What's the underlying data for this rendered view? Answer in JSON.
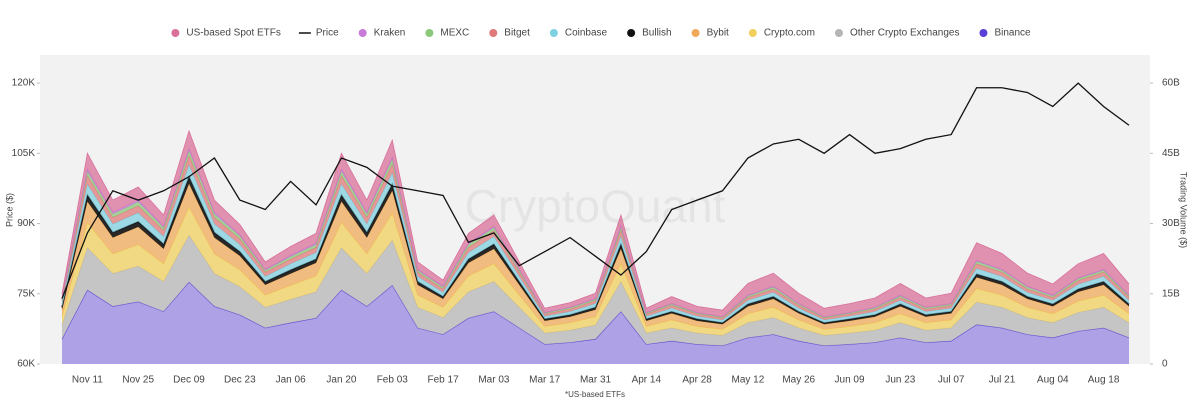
{
  "chart_data": {
    "type": "area",
    "y_label": "Price ($)",
    "y2_label": "Trading Volume ($)",
    "note": "*US-based ETFs",
    "watermark": "CryptoQuant",
    "categories": [
      null,
      "Nov 11",
      null,
      "Nov 25",
      null,
      "Dec 09",
      null,
      "Dec 23",
      null,
      "Jan 06",
      null,
      "Jan 20",
      null,
      "Feb 03",
      null,
      "Feb 17",
      null,
      "Mar 03",
      null,
      "Mar 17",
      null,
      "Mar 31",
      null,
      "Apr 14",
      null,
      "Apr 28",
      null,
      "May 12",
      null,
      "May 26",
      null,
      "Jun 09",
      null,
      "Jun 23",
      null,
      "Jul 07",
      null,
      "Jul 21",
      null,
      "Aug 04",
      null,
      "Aug 18",
      null
    ],
    "ylim": [
      60000,
      126000
    ],
    "yticks": [
      {
        "value": 60000,
        "label": "60K"
      },
      {
        "value": 75000,
        "label": "75K"
      },
      {
        "value": 90000,
        "label": "90K"
      },
      {
        "value": 105000,
        "label": "105K"
      },
      {
        "value": 120000,
        "label": "120K"
      }
    ],
    "y2lim": [
      0,
      66
    ],
    "y2ticks": [
      {
        "value": 0,
        "label": "0"
      },
      {
        "value": 15,
        "label": "15B"
      },
      {
        "value": 30,
        "label": "30B"
      },
      {
        "value": 45,
        "label": "45B"
      },
      {
        "value": 60,
        "label": "60B"
      }
    ],
    "grid": false,
    "series": [
      {
        "name": "US-based Spot ETFs",
        "color": "#d9709a",
        "axis": "y2",
        "values": [
          1,
          3.4,
          2.6,
          2.8,
          2.4,
          3.8,
          2.6,
          2.2,
          1.6,
          1.9,
          2.1,
          3.4,
          2.6,
          3.6,
          1.6,
          1.3,
          2.1,
          2.4,
          1.6,
          0.9,
          1,
          1.1,
          2.4,
          0.9,
          1.5,
          1.3,
          1.4,
          2.5,
          2.8,
          2.2,
          1.8,
          1.9,
          2,
          2.5,
          2,
          2.2,
          3.8,
          3.4,
          2.8,
          2.4,
          3,
          3.4,
          2.4
        ]
      },
      {
        "name": "Price",
        "color": "#111111",
        "type": "line",
        "values": [
          74000,
          88000,
          97000,
          95000,
          97000,
          100000,
          104000,
          95000,
          93000,
          99000,
          94000,
          104000,
          102000,
          98000,
          97000,
          96000,
          86000,
          88000,
          81000,
          84000,
          87000,
          83000,
          79000,
          84000,
          93000,
          95000,
          97000,
          104000,
          107000,
          108000,
          105000,
          109000,
          105000,
          106000,
          108000,
          109000,
          119000,
          119000,
          118000,
          115000,
          120000,
          115000,
          111000
        ]
      },
      {
        "name": "Kraken",
        "color": "#c77ad8",
        "axis": "y2",
        "values": [
          0.2,
          0.5,
          0.4,
          0.4,
          0.3,
          0.5,
          0.4,
          0.3,
          0.2,
          0.3,
          0.3,
          0.5,
          0.4,
          0.5,
          0.2,
          0.2,
          0.3,
          0.3,
          0.2,
          0.1,
          0.1,
          0.2,
          0.3,
          0.1,
          0.1,
          0.1,
          0.1,
          0.2,
          0.2,
          0.1,
          0.1,
          0.1,
          0.1,
          0.2,
          0.1,
          0.1,
          0.2,
          0.2,
          0.2,
          0.2,
          0.2,
          0.2,
          0.2
        ]
      },
      {
        "name": "MEXC",
        "color": "#8cc87a",
        "axis": "y2",
        "values": [
          0.3,
          0.9,
          0.7,
          0.8,
          0.6,
          1,
          0.7,
          0.6,
          0.4,
          0.5,
          0.6,
          0.9,
          0.7,
          1,
          0.4,
          0.4,
          0.6,
          0.6,
          0.4,
          0.2,
          0.3,
          0.3,
          0.6,
          0.2,
          0.3,
          0.2,
          0.2,
          0.3,
          0.4,
          0.3,
          0.2,
          0.2,
          0.3,
          0.3,
          0.3,
          0.3,
          0.5,
          0.4,
          0.4,
          0.3,
          0.4,
          0.4,
          0.3
        ]
      },
      {
        "name": "Bitget",
        "color": "#e07a7a",
        "axis": "y2",
        "values": [
          0.6,
          1.8,
          1.4,
          1.5,
          1.3,
          2,
          1.4,
          1.2,
          0.9,
          1,
          1.1,
          1.8,
          1.4,
          1.9,
          0.9,
          0.7,
          1.1,
          1.3,
          0.9,
          0.5,
          0.5,
          0.6,
          1.3,
          0.5,
          0.6,
          0.5,
          0.4,
          0.6,
          0.7,
          0.6,
          0.4,
          0.5,
          0.5,
          0.6,
          0.5,
          0.6,
          1,
          0.9,
          0.7,
          0.6,
          0.8,
          0.9,
          0.6
        ]
      },
      {
        "name": "Coinbase",
        "color": "#7fd0e0",
        "axis": "y2",
        "values": [
          0.8,
          2.3,
          1.8,
          1.9,
          1.6,
          2.5,
          1.8,
          1.5,
          1.1,
          1.3,
          1.4,
          2.3,
          1.8,
          2.4,
          1.1,
          0.9,
          1.4,
          1.6,
          1.1,
          0.6,
          0.7,
          0.8,
          1.6,
          0.6,
          0.7,
          0.6,
          0.6,
          0.8,
          0.9,
          0.7,
          0.6,
          0.6,
          0.7,
          0.8,
          0.7,
          0.7,
          1.2,
          1.1,
          0.9,
          0.8,
          1,
          1.1,
          0.8
        ]
      },
      {
        "name": "Bullish",
        "color": "#111111",
        "axis": "y2",
        "values": [
          0.5,
          1.4,
          1.1,
          1.1,
          1,
          1.5,
          1.1,
          0.9,
          0.7,
          0.8,
          0.8,
          1.4,
          1.1,
          1.4,
          0.7,
          0.5,
          0.8,
          1,
          0.7,
          0.4,
          0.4,
          0.5,
          1,
          0.4,
          0.4,
          0.4,
          0.3,
          0.5,
          0.5,
          0.4,
          0.3,
          0.4,
          0.4,
          0.5,
          0.4,
          0.4,
          0.7,
          0.7,
          0.5,
          0.5,
          0.6,
          0.7,
          0.5
        ]
      },
      {
        "name": "Bybit",
        "color": "#f0a95a",
        "axis": "y2",
        "values": [
          1.5,
          4.5,
          3.5,
          3.8,
          3.2,
          5,
          3.5,
          3,
          2.2,
          2.5,
          2.8,
          4.5,
          3.5,
          4.8,
          2.2,
          1.8,
          2.8,
          3.2,
          2.2,
          1.2,
          1.3,
          1.5,
          3.2,
          1.2,
          1.4,
          1.2,
          1.1,
          1.6,
          1.8,
          1.4,
          1.1,
          1.2,
          1.3,
          1.6,
          1.3,
          1.4,
          2.4,
          2.2,
          1.8,
          1.6,
          2,
          2.2,
          1.6
        ]
      },
      {
        "name": "Crypto.com",
        "color": "#f0cf5e",
        "axis": "y2",
        "values": [
          1.8,
          5.4,
          4.2,
          4.6,
          3.8,
          6,
          4.2,
          3.6,
          2.6,
          3,
          3.4,
          5.4,
          4.2,
          5.8,
          2.6,
          2.2,
          3.4,
          3.8,
          2.6,
          1.4,
          1.6,
          1.8,
          3.8,
          1.4,
          1.7,
          1.4,
          1.3,
          1.9,
          2.2,
          1.7,
          1.3,
          1.4,
          1.6,
          1.9,
          1.6,
          1.7,
          2.9,
          2.6,
          2.2,
          1.9,
          2.4,
          2.6,
          1.9
        ]
      },
      {
        "name": "Other Crypto Exchanges",
        "color": "#b5b5b5",
        "axis": "y2",
        "values": [
          3,
          9,
          7,
          7.6,
          6.4,
          10,
          7,
          6,
          4.4,
          5,
          5.6,
          9,
          7,
          9.6,
          4.4,
          3.6,
          5.6,
          6.4,
          4.4,
          2.4,
          2.6,
          3,
          6.4,
          2.4,
          2.8,
          2.4,
          2.2,
          3.2,
          3.6,
          2.8,
          2.2,
          2.4,
          2.6,
          3.2,
          2.6,
          2.8,
          4.8,
          4.4,
          3.6,
          3.2,
          4,
          4.4,
          3.2
        ]
      },
      {
        "name": "Binance",
        "color": "#5b3fd6",
        "axis": "y2",
        "values": [
          5.3,
          15.8,
          12.3,
          13.3,
          11.2,
          17.5,
          12.3,
          10.5,
          7.7,
          8.8,
          9.8,
          15.8,
          12.3,
          16.8,
          7.7,
          6.3,
          9.8,
          11.2,
          7.7,
          4.2,
          4.6,
          5.3,
          11.2,
          4.2,
          4.9,
          4.2,
          3.9,
          5.6,
          6.3,
          4.9,
          3.9,
          4.2,
          4.6,
          5.6,
          4.6,
          4.9,
          8.4,
          7.7,
          6.3,
          5.6,
          7,
          7.7,
          5.6
        ]
      }
    ]
  }
}
